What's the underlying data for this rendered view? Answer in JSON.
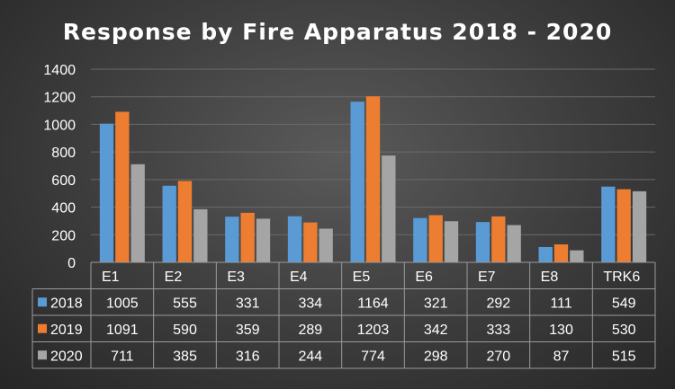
{
  "chart_data": {
    "type": "bar",
    "title": "Response by Fire Apparatus 2018 - 2020",
    "categories": [
      "E1",
      "E2",
      "E3",
      "E4",
      "E5",
      "E6",
      "E7",
      "E8",
      "TRK6"
    ],
    "series": [
      {
        "name": "2018",
        "values": [
          1005,
          555,
          331,
          334,
          1164,
          321,
          292,
          111,
          549
        ],
        "color": "#5b9bd5"
      },
      {
        "name": "2019",
        "values": [
          1091,
          590,
          359,
          289,
          1203,
          342,
          333,
          130,
          530
        ],
        "color": "#ed7d31"
      },
      {
        "name": "2020",
        "values": [
          711,
          385,
          316,
          244,
          774,
          298,
          270,
          87,
          515
        ],
        "color": "#a5a5a5"
      }
    ],
    "ylim": [
      0,
      1400
    ],
    "yticks": [
      0,
      200,
      400,
      600,
      800,
      1000,
      1200,
      1400
    ],
    "grid": true,
    "legend": "data-table",
    "data_table": true,
    "colors": {
      "background": "#3f3f3f",
      "text": "#ffffff",
      "grid": "#6a6a6a",
      "table_border": "#9a9a9a"
    }
  }
}
